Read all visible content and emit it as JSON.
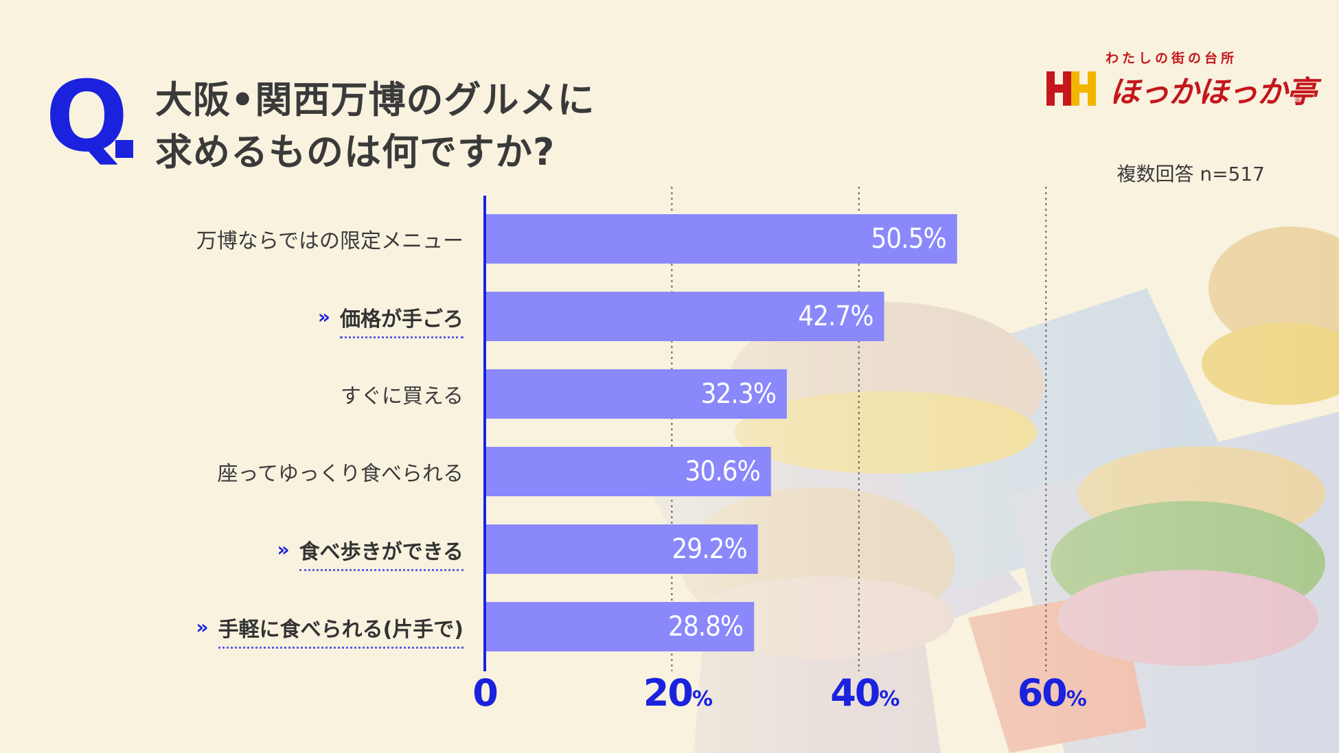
{
  "question": {
    "mark": "Q",
    "line1": "大阪•関西万博のグルメに",
    "line2": "求めるものは何ですか?"
  },
  "logo": {
    "tagline": "わたしの街の台所",
    "name": "ほっかほっか亭",
    "registered": "®"
  },
  "note": "複数回答 n=517",
  "colors": {
    "accent": "#1a22dd",
    "bar": "#8a88fb",
    "brand": "#c4161c",
    "background": "#f8f2df"
  },
  "chart_data": {
    "type": "bar",
    "orientation": "horizontal",
    "categories": [
      "万博ならではの限定メニュー",
      "価格が手ごろ",
      "すぐに買える",
      "座ってゆっくり食べられる",
      "食べ歩きができる",
      "手軽に食べられる(片手で)"
    ],
    "highlighted": [
      false,
      true,
      false,
      false,
      true,
      true
    ],
    "values": [
      50.5,
      42.7,
      32.3,
      30.6,
      29.2,
      28.8
    ],
    "value_labels": [
      "50.5%",
      "42.7%",
      "32.3%",
      "30.6%",
      "29.2%",
      "28.8%"
    ],
    "xlim": [
      0,
      70
    ],
    "ticks": [
      {
        "value": 0,
        "label": "0",
        "unit": ""
      },
      {
        "value": 20,
        "label": "20",
        "unit": "%"
      },
      {
        "value": 40,
        "label": "40",
        "unit": "%"
      },
      {
        "value": 60,
        "label": "60",
        "unit": "%"
      }
    ],
    "grid": "dotted vertical at 20, 40, 60"
  }
}
